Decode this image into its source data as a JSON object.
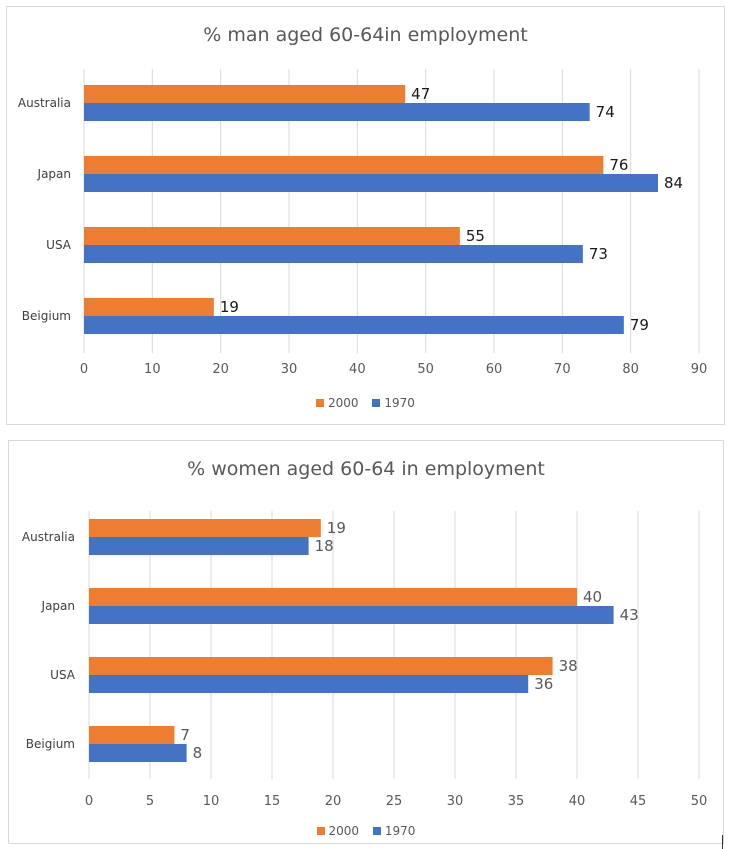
{
  "chart_data": [
    {
      "type": "bar",
      "orientation": "horizontal",
      "title": "% man aged 60-64in employment",
      "categories": [
        "Australia",
        "Japan",
        "USA",
        "Beigium"
      ],
      "series": [
        {
          "name": "2000",
          "values": [
            47,
            76,
            55,
            19
          ],
          "color": "#ed7d31"
        },
        {
          "name": "1970",
          "values": [
            74,
            84,
            73,
            79
          ],
          "color": "#4472c4"
        }
      ],
      "xlim": [
        0,
        90
      ],
      "xticks": [
        "0",
        "10",
        "20",
        "30",
        "40",
        "50",
        "60",
        "70",
        "80",
        "90"
      ],
      "legend_position": "bottom",
      "grid": true
    },
    {
      "type": "bar",
      "orientation": "horizontal",
      "title": "% women aged 60-64 in employment",
      "categories": [
        "Australia",
        "Japan",
        "USA",
        "Beigium"
      ],
      "series": [
        {
          "name": "2000",
          "values": [
            19,
            40,
            38,
            7
          ],
          "color": "#ed7d31"
        },
        {
          "name": "1970",
          "values": [
            18,
            43,
            36,
            8
          ],
          "color": "#4472c4"
        }
      ],
      "xlim": [
        0,
        50
      ],
      "xticks": [
        "0",
        "5",
        "10",
        "15",
        "20",
        "25",
        "30",
        "35",
        "40",
        "45",
        "50"
      ],
      "legend_position": "bottom",
      "grid": true
    }
  ]
}
